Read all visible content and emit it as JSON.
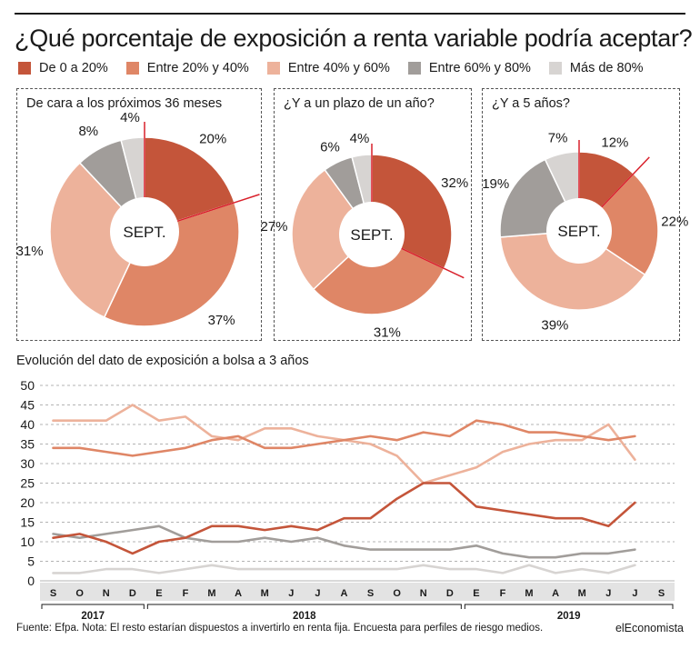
{
  "title": "¿Qué porcentaje de exposición a renta variable podría aceptar?",
  "colors": {
    "c0": "#c4553a",
    "c1": "#df8666",
    "c2": "#edb29b",
    "c3": "#a19d9a",
    "c4": "#d7d4d2",
    "accent": "#d9202b"
  },
  "legend": [
    {
      "label": "De 0 a 20%",
      "color": "#c4553a"
    },
    {
      "label": "Entre 20% y 40%",
      "color": "#df8666"
    },
    {
      "label": "Entre 40% y 60%",
      "color": "#edb29b"
    },
    {
      "label": "Entre 60% y 80%",
      "color": "#a19d9a"
    },
    {
      "label": "Más de 80%",
      "color": "#d7d4d2"
    }
  ],
  "center_label": "SEPT.",
  "chart_data": [
    {
      "type": "pie",
      "title": "De cara a los próximos 36 meses",
      "categories": [
        "De 0 a 20%",
        "Entre 20% y 40%",
        "Entre 40% y 60%",
        "Entre 60% y 80%",
        "Más de 80%"
      ],
      "values": [
        20,
        37,
        31,
        8,
        4
      ],
      "value_labels": [
        "20%",
        "37%",
        "31%",
        "8%",
        "4%"
      ]
    },
    {
      "type": "pie",
      "title": "¿Y a un plazo de un año?",
      "categories": [
        "De 0 a 20%",
        "Entre 20% y 40%",
        "Entre 40% y 60%",
        "Entre 60% y 80%",
        "Más de 80%"
      ],
      "values": [
        32,
        31,
        27,
        6,
        4
      ],
      "value_labels": [
        "32%",
        "31%",
        "27%",
        "6%",
        "4%"
      ]
    },
    {
      "type": "pie",
      "title": "¿Y a 5 años?",
      "categories": [
        "De 0 a 20%",
        "Entre 20% y 40%",
        "Entre 40% y 60%",
        "Entre 60% y 80%",
        "Más de 80%"
      ],
      "values": [
        12,
        22,
        39,
        19,
        7
      ],
      "value_labels": [
        "12%",
        "22%",
        "39%",
        "19%",
        "7%"
      ]
    },
    {
      "type": "line",
      "title": "Evolución del dato de exposición a bolsa a 3 años",
      "x": [
        "S",
        "O",
        "N",
        "D",
        "E",
        "F",
        "M",
        "A",
        "M",
        "J",
        "J",
        "A",
        "S",
        "O",
        "N",
        "D",
        "E",
        "F",
        "M",
        "A",
        "M",
        "J",
        "J",
        "S"
      ],
      "year_labels": [
        "2017",
        "2018",
        "2019"
      ],
      "y_ticks": [
        "0",
        "5",
        "10",
        "15",
        "20",
        "25",
        "30",
        "35",
        "40",
        "45",
        "50"
      ],
      "ylim": [
        0,
        50
      ],
      "grid": true,
      "series": [
        {
          "name": "De 0 a 20%",
          "values": [
            11,
            12,
            10,
            7,
            10,
            11,
            14,
            14,
            13,
            14,
            13,
            16,
            16,
            21,
            25,
            25,
            19,
            18,
            17,
            16,
            16,
            14,
            20,
            null
          ]
        },
        {
          "name": "Entre 20% y 40%",
          "values": [
            34,
            34,
            33,
            32,
            33,
            34,
            36,
            37,
            34,
            34,
            35,
            36,
            37,
            36,
            38,
            37,
            41,
            40,
            38,
            38,
            37,
            36,
            37,
            null
          ]
        },
        {
          "name": "Entre 40% y 60%",
          "values": [
            41,
            41,
            41,
            45,
            41,
            42,
            37,
            36,
            39,
            39,
            37,
            36,
            35,
            32,
            25,
            27,
            29,
            33,
            35,
            36,
            36,
            40,
            31,
            null
          ]
        },
        {
          "name": "Entre 60% y 80%",
          "values": [
            12,
            11,
            12,
            13,
            14,
            11,
            10,
            10,
            11,
            10,
            11,
            9,
            8,
            8,
            8,
            8,
            9,
            7,
            6,
            6,
            7,
            7,
            8,
            null
          ]
        },
        {
          "name": "Más de 80%",
          "values": [
            2,
            2,
            3,
            3,
            2,
            3,
            4,
            3,
            3,
            3,
            3,
            3,
            3,
            3,
            4,
            3,
            3,
            2,
            4,
            2,
            3,
            2,
            4,
            null
          ]
        }
      ]
    }
  ],
  "footer": {
    "source": "Fuente: Efpa. Nota: El resto estarían dispuestos a invertirlo en renta fija. Encuesta para perfiles de riesgo medios.",
    "brand": "elEconomista"
  }
}
